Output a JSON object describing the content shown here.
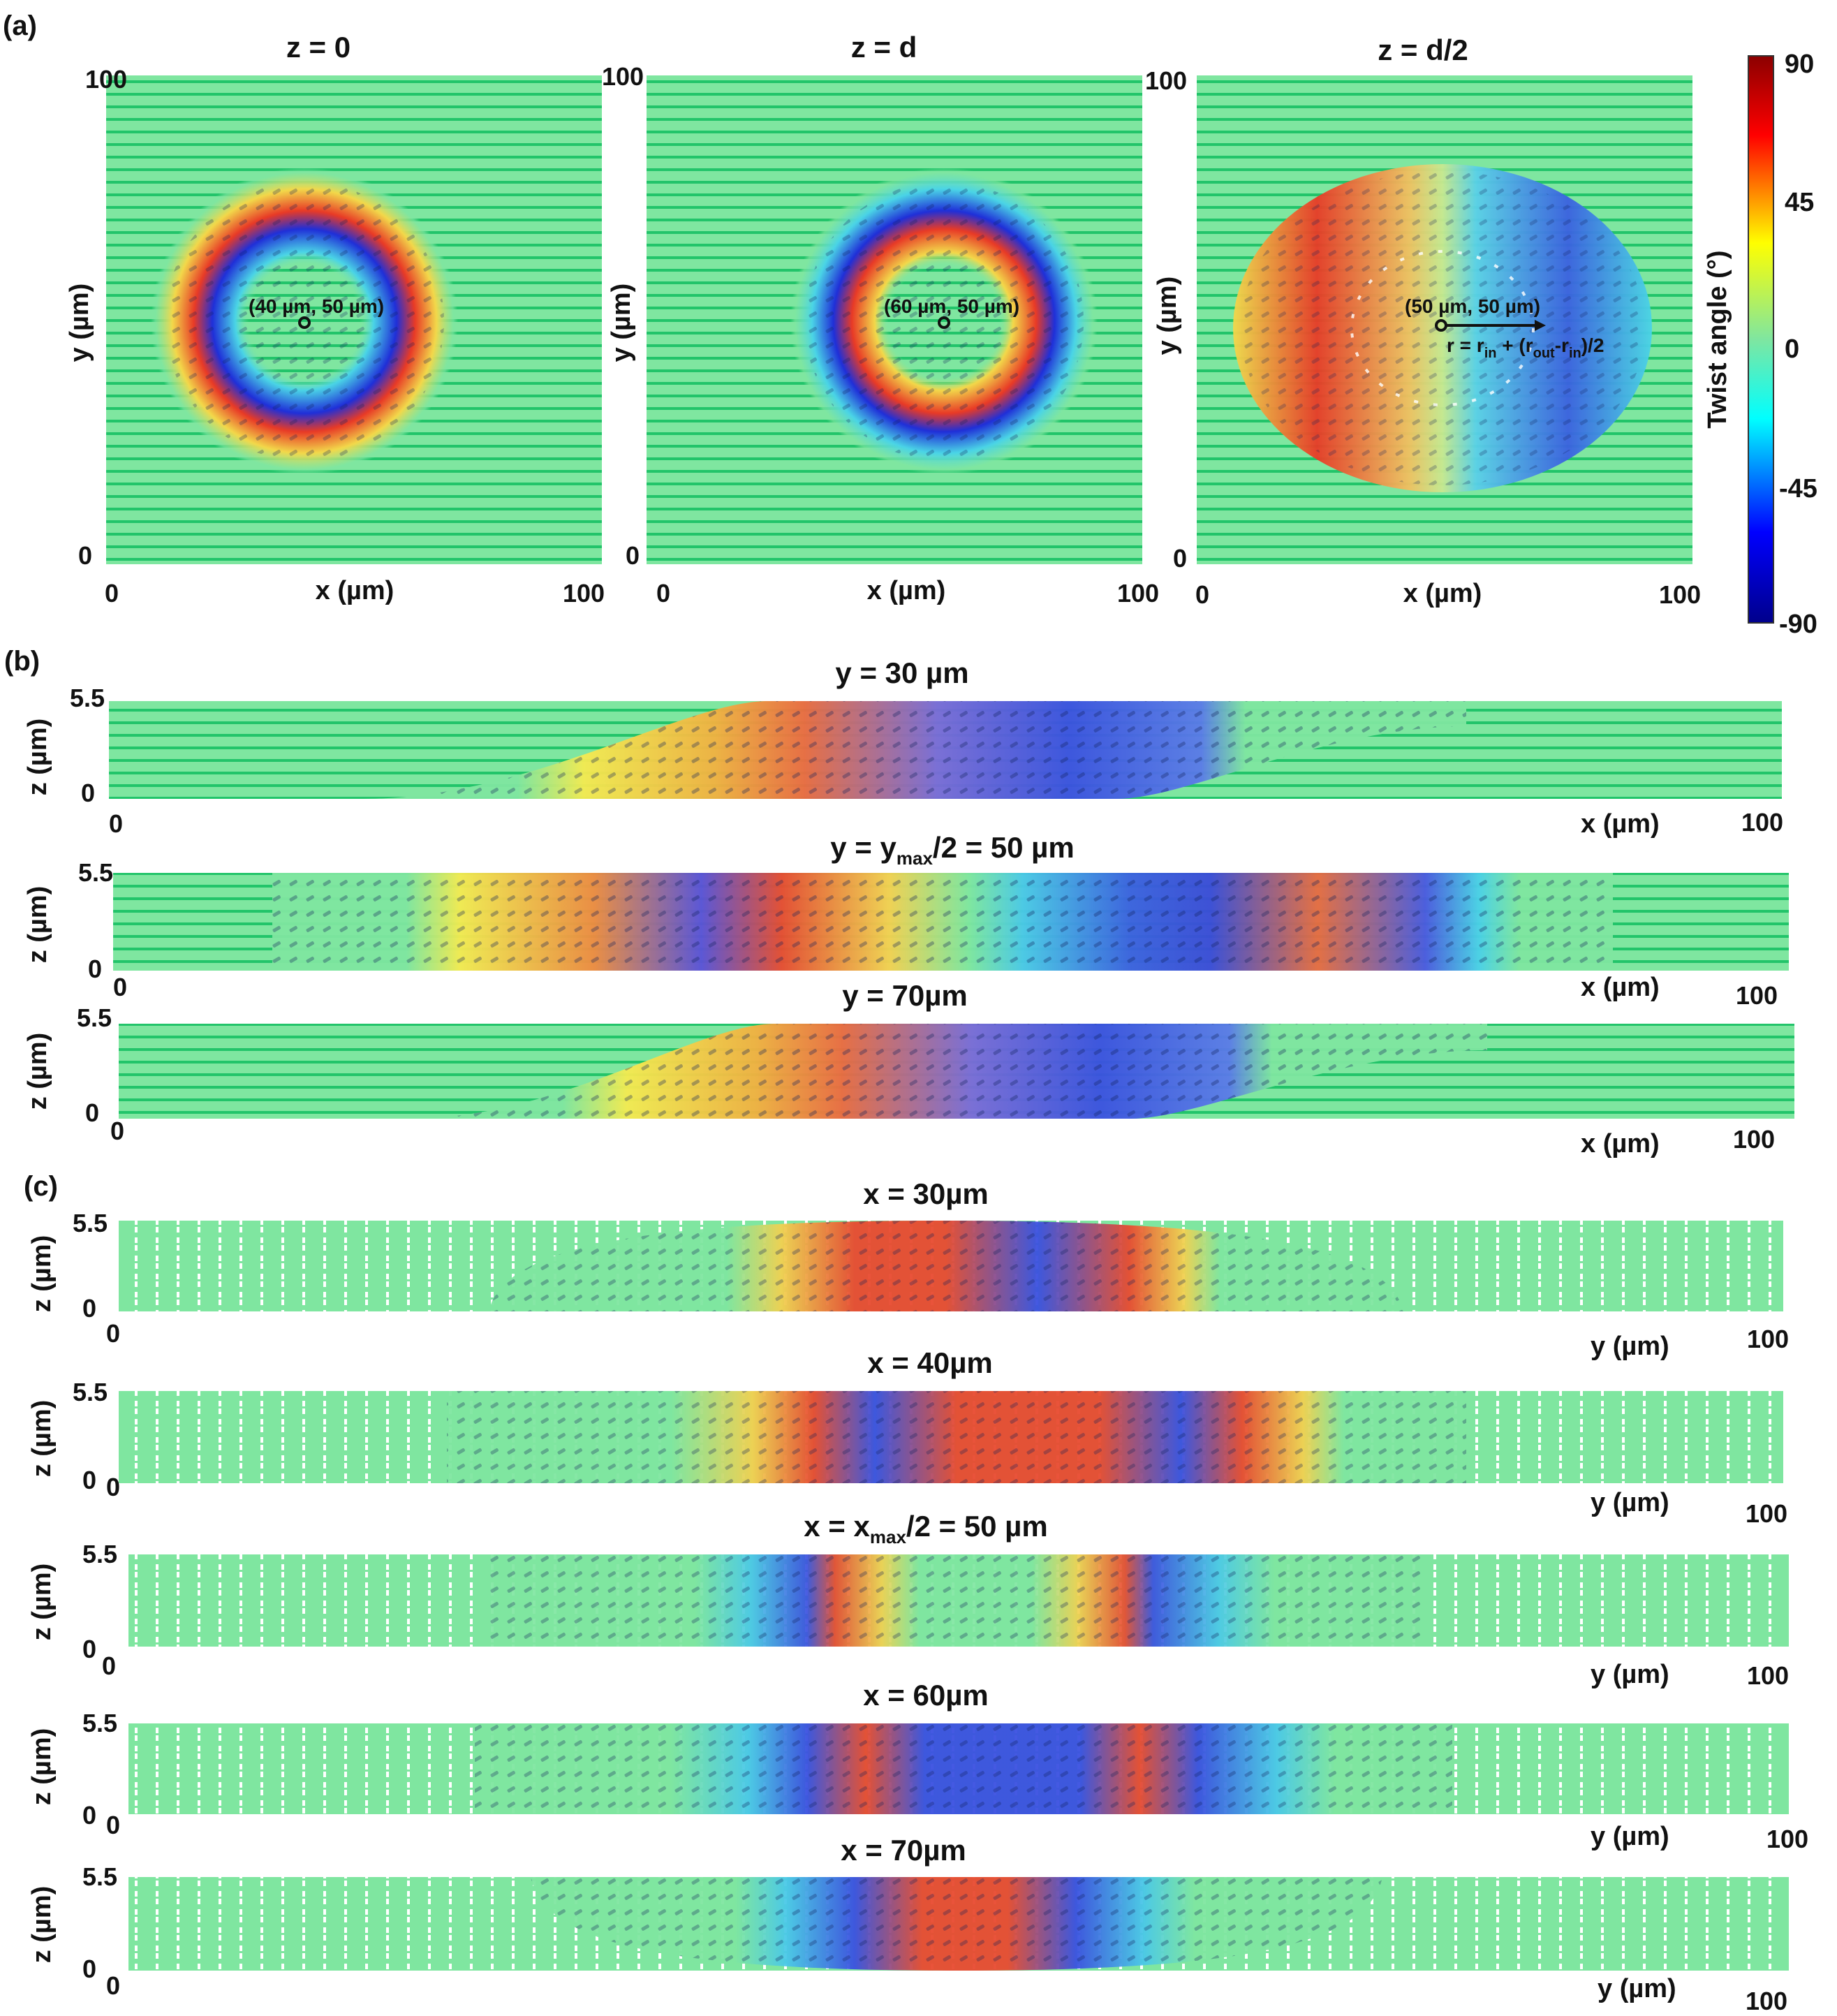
{
  "figure": {
    "panel_labels": [
      "(a)",
      "(b)",
      "(c)"
    ]
  },
  "colors": {
    "background_green": "#7fe6a0",
    "director_green": "#22c46a",
    "red": "#e83a26",
    "yellow": "#f2e24a",
    "cyan": "#2fd6e6",
    "blue": "#2230d8",
    "darkred": "#8b0000",
    "darkblue": "#00008b"
  },
  "chart_data": [
    {
      "panel": "(a)",
      "type": "heatmap",
      "title": "z = 0",
      "xlabel": "x (µm)",
      "ylabel": "y (µm)",
      "xlim": [
        0,
        100
      ],
      "ylim": [
        0,
        100
      ],
      "x_ticks": [
        "0",
        "100"
      ],
      "y_ticks": [
        "0",
        "100"
      ],
      "ring_center": [
        40,
        50
      ],
      "annotation": "(40 µm, 50 µm)",
      "ring_outer_color": "red",
      "ring_inner_color": "blue"
    },
    {
      "panel": "(a)",
      "type": "heatmap",
      "title": "z = d",
      "xlabel": "x (µm)",
      "ylabel": "y (µm)",
      "xlim": [
        0,
        100
      ],
      "ylim": [
        0,
        100
      ],
      "x_ticks": [
        "0",
        "100"
      ],
      "y_ticks": [
        "0",
        "100"
      ],
      "ring_center": [
        60,
        50
      ],
      "annotation": "(60 µm, 50 µm)",
      "ring_outer_color": "blue",
      "ring_inner_color": "red"
    },
    {
      "panel": "(a)",
      "type": "heatmap",
      "title": "z = d/2",
      "xlabel": "x (µm)",
      "ylabel": "y (µm)",
      "xlim": [
        0,
        100
      ],
      "ylim": [
        0,
        100
      ],
      "x_ticks": [
        "0",
        "100"
      ],
      "y_ticks": [
        "0",
        "100"
      ],
      "ring_center": [
        50,
        50
      ],
      "annotation": "(50 µm, 50 µm)",
      "radius_annotation": "r = r_in + (r_out - r_in)/2",
      "left_half": "red",
      "right_half": "blue"
    },
    {
      "panel": "colorbar",
      "type": "heatmap",
      "label": "Twist angle (°)",
      "ticks": [
        "90",
        "45",
        "0",
        "-45",
        "-90"
      ],
      "range": [
        -90,
        90
      ],
      "colormap": "jet"
    },
    {
      "panel": "(b)",
      "type": "heatmap",
      "title": "y = 30 µm",
      "xlabel": "x (µm)",
      "ylabel": "z (µm)",
      "xlim": [
        0,
        100
      ],
      "ylim": [
        0,
        5.5
      ],
      "x_ticks": [
        "0",
        "100"
      ],
      "y_ticks": [
        "0",
        "5.5"
      ],
      "profile": "single"
    },
    {
      "panel": "(b)",
      "type": "heatmap",
      "title_prefix": "y = y",
      "title_sub": "max",
      "title_suffix": "/2 = 50 µm",
      "xlabel": "x (µm)",
      "ylabel": "z (µm)",
      "xlim": [
        0,
        100
      ],
      "ylim": [
        0,
        5.5
      ],
      "x_ticks": [
        "0",
        "100"
      ],
      "y_ticks": [
        "0",
        "5.5"
      ],
      "profile": "double"
    },
    {
      "panel": "(b)",
      "type": "heatmap",
      "title": "y = 70µm",
      "xlabel": "x (µm)",
      "ylabel": "z (µm)",
      "xlim": [
        0,
        100
      ],
      "ylim": [
        0,
        5.5
      ],
      "x_ticks": [
        "0",
        "100"
      ],
      "y_ticks": [
        "0",
        "5.5"
      ],
      "profile": "single"
    },
    {
      "panel": "(c)",
      "type": "heatmap",
      "title": "x = 30µm",
      "xlabel": "y (µm)",
      "ylabel": "z (µm)",
      "xlim": [
        0,
        100
      ],
      "ylim": [
        0,
        5.5
      ],
      "x_ticks": [
        "0",
        "100"
      ],
      "y_ticks": [
        "0",
        "5.5"
      ],
      "profile": "arc-up"
    },
    {
      "panel": "(c)",
      "type": "heatmap",
      "title": "x = 40µm",
      "xlabel": "y (µm)",
      "ylabel": "z (µm)",
      "xlim": [
        0,
        100
      ],
      "ylim": [
        0,
        5.5
      ],
      "x_ticks": [
        "0",
        "100"
      ],
      "y_ticks": [
        "0",
        "5.5"
      ],
      "profile": "arc-red"
    },
    {
      "panel": "(c)",
      "type": "heatmap",
      "title_prefix": "x = x",
      "title_sub": "max",
      "title_suffix": "/2 = 50 µm",
      "xlabel": "y (µm)",
      "ylabel": "z (µm)",
      "xlim": [
        0,
        100
      ],
      "ylim": [
        0,
        5.5
      ],
      "x_ticks": [
        "0",
        "100"
      ],
      "y_ticks": [
        "0",
        "5.5"
      ],
      "profile": "two-walls"
    },
    {
      "panel": "(c)",
      "type": "heatmap",
      "title": "x = 60µm",
      "xlabel": "y (µm)",
      "ylabel": "z (µm)",
      "xlim": [
        0,
        100
      ],
      "ylim": [
        0,
        5.5
      ],
      "x_ticks": [
        "0",
        "100"
      ],
      "y_ticks": [
        "0",
        "5.5"
      ],
      "profile": "arc-blue"
    },
    {
      "panel": "(c)",
      "type": "heatmap",
      "title": "x = 70µm",
      "xlabel": "y (µm)",
      "ylabel": "z (µm)",
      "xlim": [
        0,
        100
      ],
      "ylim": [
        0,
        5.5
      ],
      "x_ticks": [
        "0",
        "100"
      ],
      "y_ticks": [
        "0",
        "5.5"
      ],
      "profile": "arc-down"
    }
  ]
}
